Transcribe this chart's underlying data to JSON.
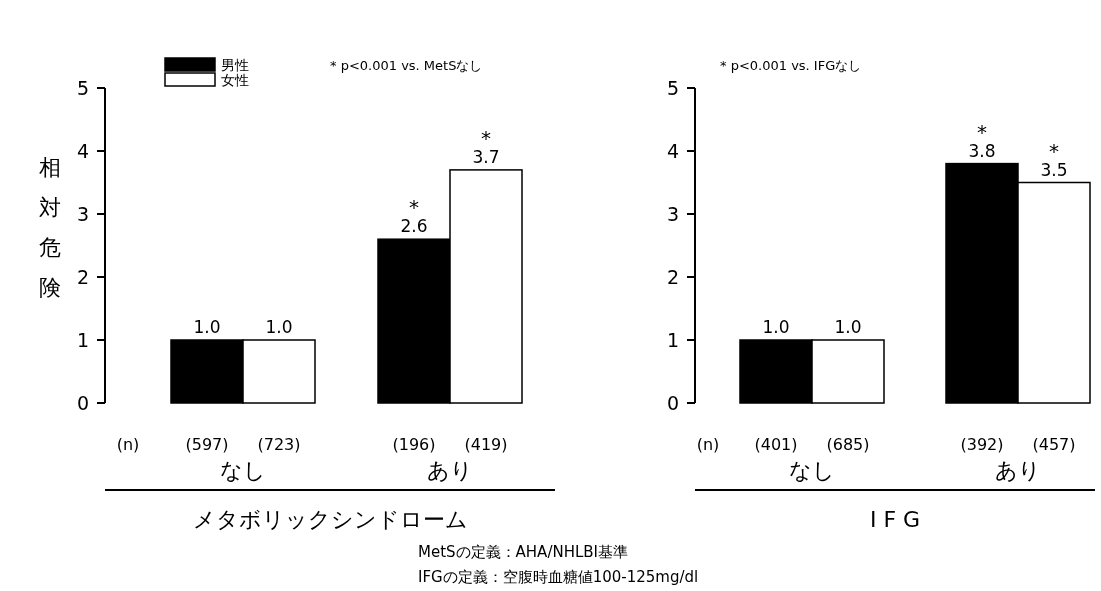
{
  "chart_data": [
    {
      "type": "bar",
      "ylabel": "相対危険",
      "xlabel": "メタボリックシンドローム",
      "categories": [
        "なし",
        "あり"
      ],
      "ylim": [
        0,
        5
      ],
      "yticks": [
        0,
        1,
        2,
        3,
        4,
        5
      ],
      "legend": "top left",
      "series": [
        {
          "name": "男性",
          "color": "#000000",
          "values": [
            1.0,
            2.6
          ],
          "value_labels": [
            "1.0",
            "2.6"
          ]
        },
        {
          "name": "女性",
          "color": "#ffffff",
          "values": [
            1.0,
            3.7
          ],
          "value_labels": [
            "1.0",
            "3.7"
          ]
        }
      ],
      "annotations": [
        "* p<0.001 vs. MetSなし",
        "(n)",
        "(597)",
        "(723)",
        "(196)",
        "(419)",
        {
          "text": "*",
          "x": "あり",
          "y": 2.6
        },
        {
          "text": "*",
          "x": "あり",
          "y": 3.7
        }
      ]
    },
    {
      "type": "bar",
      "xlabel": "I F G",
      "categories": [
        "なし",
        "あり"
      ],
      "ylim": [
        0,
        5
      ],
      "yticks": [
        0,
        1,
        2,
        3,
        4,
        5
      ],
      "series": [
        {
          "color": "#000000",
          "values": [
            1.0,
            3.8
          ],
          "value_labels": [
            "1.0",
            "3.8"
          ]
        },
        {
          "color": "#ffffff",
          "values": [
            1.0,
            3.5
          ],
          "value_labels": [
            "1.0",
            "3.5"
          ]
        }
      ],
      "annotations": [
        "* p<0.001 vs. IFGなし",
        "(n)",
        "(401)",
        "(685)",
        "(392)",
        "(457)",
        "MetSの定義：AHA/NHLBI基準",
        "IFGの定義：空腹時血糖値100-125mg/dl",
        {
          "text": "*",
          "x": "あり",
          "y": 3.8
        },
        {
          "text": "*",
          "x": "あり",
          "y": 3.5
        }
      ]
    }
  ]
}
